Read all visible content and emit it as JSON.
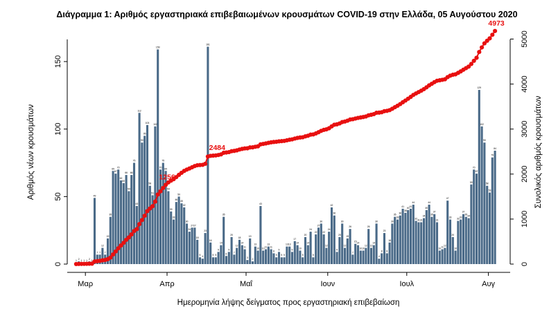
{
  "chart_data": {
    "type": "bar",
    "title": "Διάγραμμα 1: Αριθμός εργαστηριακά επιβεβαιωμένων κρουσμάτων COVID-19 στην Ελλάδα, 05 Αυγούστου 2020",
    "xlabel": "Ημερομηνία λήψης δείγματος προς εργαστηριακή επιβεβαίωση",
    "ylabel": "Αριθμός νέων κρουσμάτων",
    "y2label": "Συνολικός αριθμός κρουσμάτων",
    "ylim": [
      0,
      170
    ],
    "y2lim": [
      0,
      5100
    ],
    "yticks": [
      0,
      50,
      100,
      150
    ],
    "y2ticks": [
      0,
      1000,
      2000,
      3000,
      4000,
      5000
    ],
    "x_start": "2020-02-26",
    "month_ticks": [
      {
        "label": "Μαρ",
        "date": "2020-03-01"
      },
      {
        "label": "Απρ",
        "date": "2020-04-01"
      },
      {
        "label": "Μαΐ",
        "date": "2020-05-01"
      },
      {
        "label": "Ιουν",
        "date": "2020-06-01"
      },
      {
        "label": "Ιουλ",
        "date": "2020-07-01"
      },
      {
        "label": "Αυγ",
        "date": "2020-08-01"
      }
    ],
    "bar_color": "#4a6a88",
    "line_color": "#e81010",
    "series": [
      {
        "name": "Αριθμός νέων κρουσμάτων",
        "type": "bar",
        "values": [
          1,
          2,
          1,
          1,
          1,
          2,
          1,
          49,
          7,
          7,
          12,
          7,
          19,
          35,
          69,
          67,
          70,
          62,
          60,
          66,
          54,
          66,
          75,
          43,
          112,
          90,
          95,
          103,
          58,
          51,
          102,
          159,
          70,
          75,
          69,
          54,
          39,
          33,
          46,
          50,
          45,
          42,
          30,
          24,
          27,
          27,
          18,
          5,
          4,
          23,
          161,
          16,
          5,
          5,
          9,
          14,
          35,
          6,
          9,
          20,
          7,
          12,
          18,
          14,
          11,
          3,
          19,
          2,
          13,
          10,
          43,
          10,
          11,
          13,
          11,
          8,
          5,
          9,
          5,
          5,
          13,
          13,
          9,
          17,
          14,
          10,
          5,
          20,
          14,
          24,
          5,
          22,
          27,
          30,
          22,
          12,
          24,
          42,
          36,
          9,
          20,
          30,
          12,
          19,
          26,
          7,
          15,
          14,
          10,
          10,
          12,
          26,
          12,
          14,
          30,
          4,
          8,
          23,
          8,
          16,
          30,
          35,
          33,
          36,
          41,
          38,
          40,
          41,
          44,
          32,
          31,
          31,
          34,
          40,
          44,
          35,
          37,
          31,
          10,
          11,
          12,
          47,
          33,
          20,
          10,
          32,
          33,
          37,
          35,
          34,
          59,
          70,
          67,
          129,
          102,
          90,
          58,
          53,
          79,
          84
        ],
        "labels": [
          1,
          2,
          1,
          1,
          1,
          2,
          1,
          49,
          7,
          7,
          12,
          7,
          19,
          35,
          69,
          67,
          70,
          62,
          60,
          66,
          54,
          66,
          75,
          43,
          112,
          90,
          95,
          103,
          58,
          51,
          102,
          159,
          70,
          75,
          69,
          54,
          39,
          33,
          46,
          50,
          45,
          42,
          30,
          24,
          27,
          27,
          18,
          5,
          4,
          23,
          161,
          16,
          5,
          5,
          9,
          14,
          35,
          6,
          9,
          20,
          7,
          12,
          18,
          14,
          11,
          3,
          19,
          2,
          13,
          10,
          43,
          10,
          11,
          13,
          11,
          8,
          5,
          9,
          5,
          5,
          13,
          13,
          9,
          17,
          14,
          10,
          5,
          20,
          14,
          24,
          5,
          22,
          27,
          30,
          22,
          12,
          24,
          42,
          36,
          9,
          20,
          30,
          12,
          19,
          26,
          7,
          15,
          14,
          10,
          10,
          12,
          26,
          12,
          14,
          30,
          4,
          8,
          23,
          8,
          16,
          30,
          35,
          33,
          36,
          41,
          38,
          40,
          41,
          44,
          32,
          31,
          31,
          34,
          40,
          44,
          35,
          37,
          31,
          10,
          11,
          12,
          47,
          33,
          20,
          10,
          32,
          33,
          37,
          35,
          34,
          59,
          70,
          67,
          129,
          102,
          90,
          58,
          53,
          79,
          84
        ]
      },
      {
        "name": "Συνολικός αριθμός κρουσμάτων",
        "type": "line",
        "axis": "right"
      }
    ],
    "annotations": [
      {
        "text": "1256",
        "index": 34
      },
      {
        "text": "2484",
        "index": 53
      },
      {
        "text": "4973",
        "index": 160
      }
    ]
  }
}
